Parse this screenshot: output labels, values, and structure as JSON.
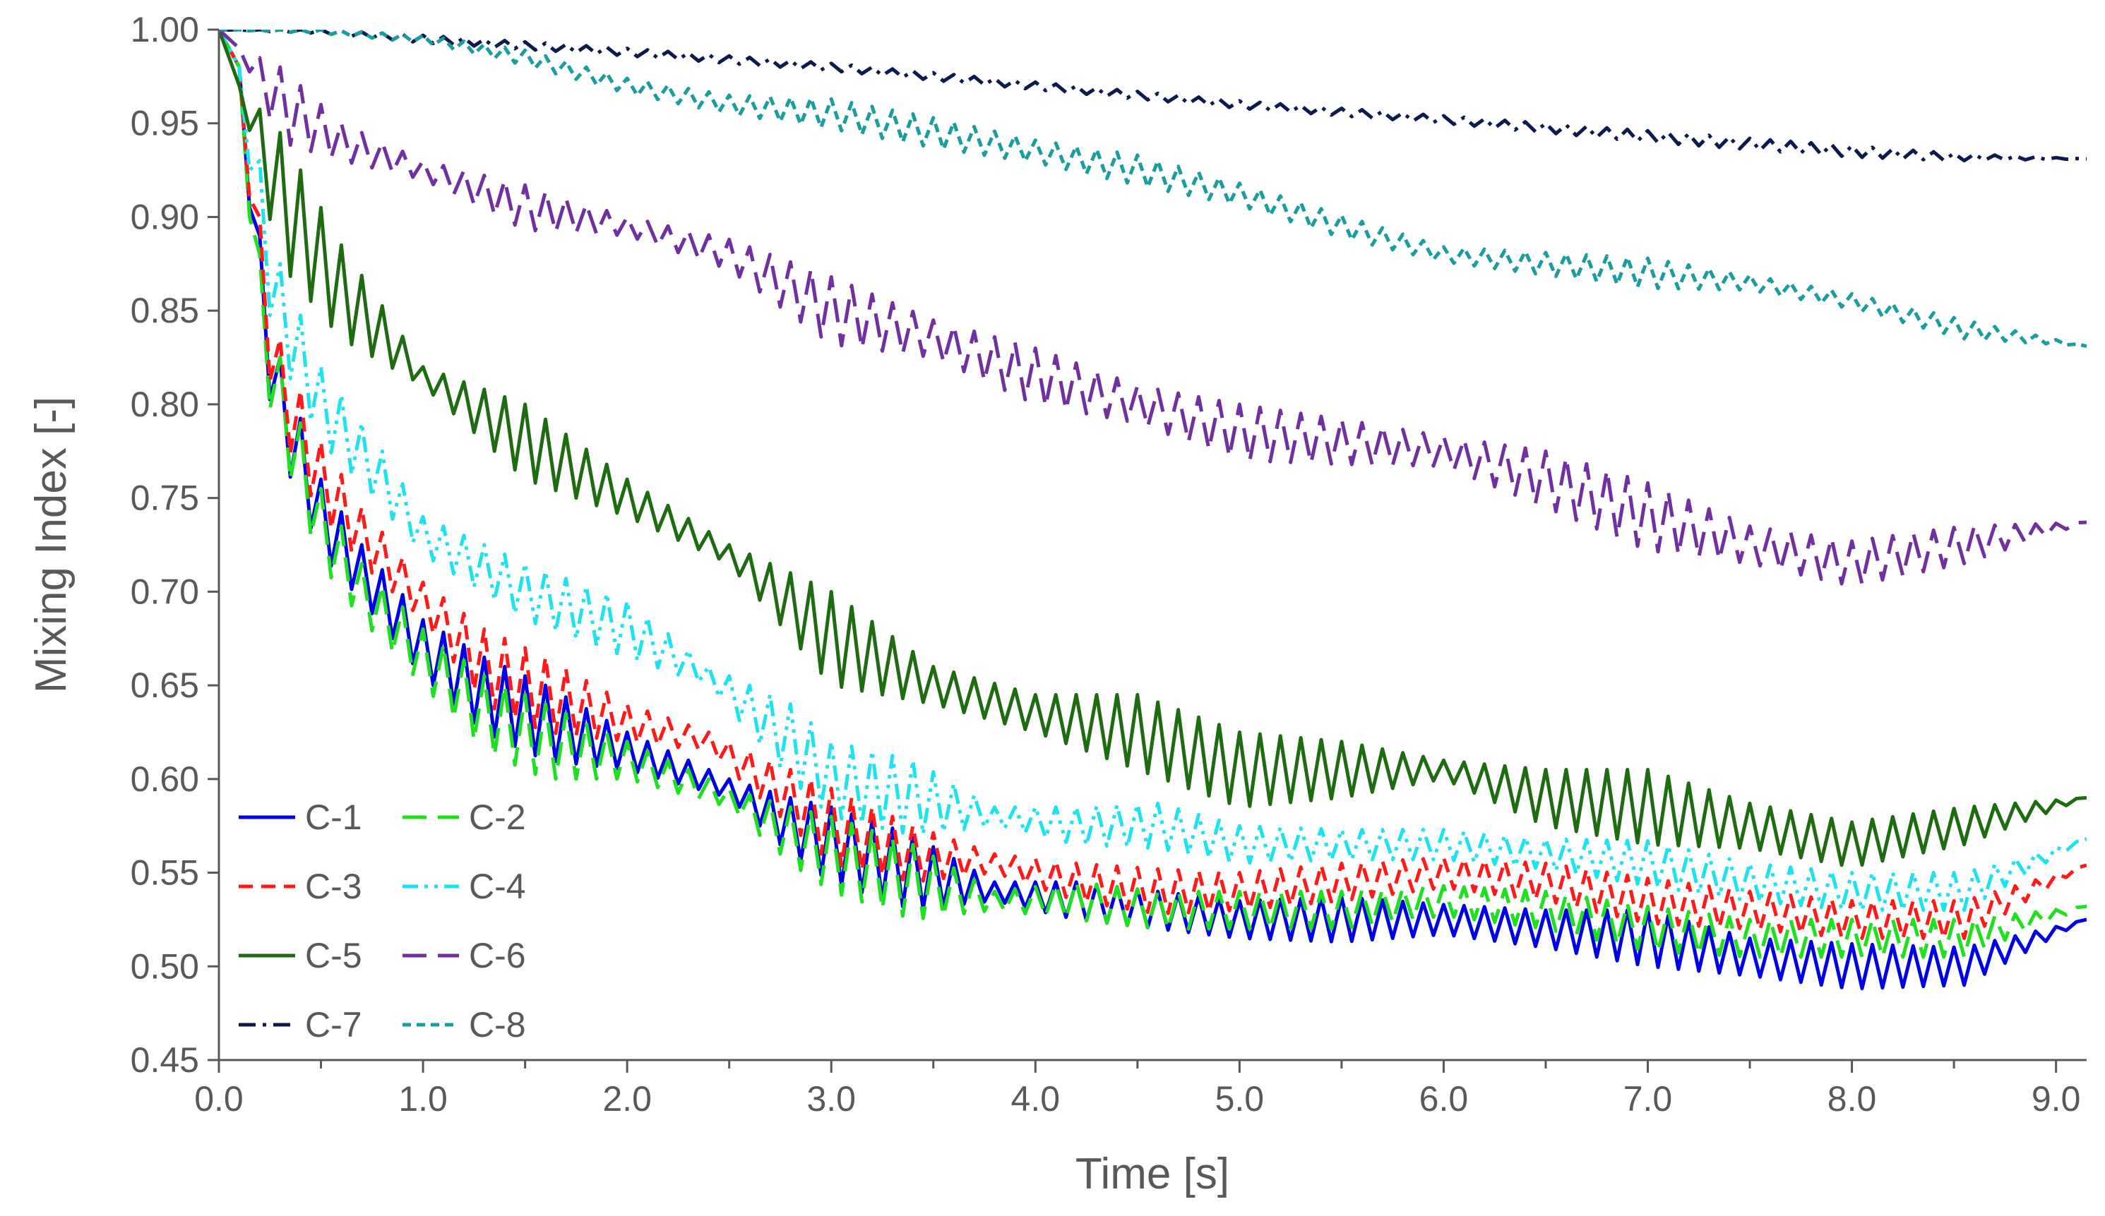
{
  "chart_data": {
    "type": "line",
    "title": "",
    "xlabel": "Time [s]",
    "ylabel": "Mixing Index [-]",
    "xlim": [
      0,
      9.15
    ],
    "ylim": [
      0.45,
      1.0
    ],
    "x_ticks": [
      0,
      1,
      2,
      3,
      4,
      5,
      6,
      7,
      8,
      9
    ],
    "x_tick_labels": [
      "0.0",
      "1.0",
      "2.0",
      "3.0",
      "4.0",
      "5.0",
      "6.0",
      "7.0",
      "8.0",
      "9.0"
    ],
    "y_ticks": [
      0.45,
      0.5,
      0.55,
      0.6,
      0.65,
      0.7,
      0.75,
      0.8,
      0.85,
      0.9,
      0.95,
      1.0
    ],
    "y_tick_labels": [
      "0.45",
      "0.50",
      "0.55",
      "0.60",
      "0.65",
      "0.70",
      "0.75",
      "0.80",
      "0.85",
      "0.90",
      "0.95",
      "1.00"
    ],
    "grid": false,
    "legend_position": "bottom-left",
    "oscillation_period_s": 0.1,
    "series": [
      {
        "name": "C-1",
        "color": "#0000e6",
        "dash": "solid",
        "x": [
          0,
          0.1,
          0.2,
          0.3,
          0.5,
          0.7,
          1.0,
          1.3,
          1.6,
          2.0,
          2.5,
          2.8,
          3.0,
          3.4,
          3.8,
          4.2,
          4.6,
          5.0,
          5.5,
          6.0,
          6.5,
          7.0,
          7.5,
          8.0,
          8.55,
          9.15
        ],
        "y": [
          1.0,
          0.98,
          0.86,
          0.8,
          0.74,
          0.71,
          0.67,
          0.645,
          0.63,
          0.615,
          0.595,
          0.575,
          0.565,
          0.55,
          0.54,
          0.535,
          0.53,
          0.525,
          0.525,
          0.525,
          0.52,
          0.515,
          0.505,
          0.5,
          0.5,
          0.525
        ],
        "amp": [
          0,
          0,
          0.03,
          0.025,
          0.02,
          0.015,
          0.015,
          0.02,
          0.02,
          0.01,
          0.005,
          0.015,
          0.02,
          0.02,
          0.005,
          0.01,
          0.01,
          0.01,
          0.012,
          0.008,
          0.01,
          0.015,
          0.01,
          0.012,
          0.01,
          0
        ]
      },
      {
        "name": "C-2",
        "color": "#1fe01f",
        "dash": "long-dash",
        "x": [
          0,
          0.1,
          0.2,
          0.3,
          0.5,
          0.7,
          1.0,
          1.3,
          1.6,
          2.0,
          2.5,
          2.8,
          3.0,
          3.4,
          3.8,
          4.2,
          4.6,
          5.0,
          5.5,
          6.0,
          6.5,
          7.0,
          7.5,
          8.0,
          8.55,
          9.15
        ],
        "y": [
          1.0,
          0.98,
          0.85,
          0.8,
          0.735,
          0.7,
          0.665,
          0.635,
          0.62,
          0.61,
          0.59,
          0.57,
          0.56,
          0.545,
          0.535,
          0.535,
          0.53,
          0.53,
          0.53,
          0.535,
          0.53,
          0.52,
          0.515,
          0.515,
          0.515,
          0.532
        ],
        "amp": [
          0,
          0,
          0.03,
          0.025,
          0.02,
          0.015,
          0.015,
          0.02,
          0.02,
          0.01,
          0.005,
          0.015,
          0.02,
          0.02,
          0.005,
          0.01,
          0.01,
          0.01,
          0.01,
          0.008,
          0.01,
          0.012,
          0.01,
          0.01,
          0.01,
          0
        ]
      },
      {
        "name": "C-3",
        "color": "#ff1a1a",
        "dash": "dash",
        "x": [
          0,
          0.1,
          0.2,
          0.3,
          0.5,
          0.7,
          1.0,
          1.3,
          1.6,
          2.0,
          2.4,
          2.8,
          3.0,
          3.4,
          3.8,
          4.2,
          4.6,
          5.0,
          5.5,
          6.0,
          6.5,
          7.0,
          7.5,
          8.0,
          8.55,
          9.15
        ],
        "y": [
          1.0,
          0.98,
          0.87,
          0.81,
          0.76,
          0.73,
          0.695,
          0.66,
          0.645,
          0.63,
          0.62,
          0.59,
          0.575,
          0.56,
          0.555,
          0.545,
          0.54,
          0.54,
          0.545,
          0.55,
          0.545,
          0.535,
          0.53,
          0.525,
          0.525,
          0.554
        ],
        "amp": [
          0,
          0,
          0.03,
          0.025,
          0.02,
          0.015,
          0.01,
          0.02,
          0.02,
          0.01,
          0.005,
          0.015,
          0.02,
          0.015,
          0.005,
          0.01,
          0.012,
          0.01,
          0.01,
          0.008,
          0.01,
          0.012,
          0.01,
          0.01,
          0.01,
          0
        ]
      },
      {
        "name": "C-4",
        "color": "#1ee3ef",
        "dash": "dash-dot-dot",
        "x": [
          0,
          0.1,
          0.2,
          0.3,
          0.5,
          0.8,
          1.0,
          1.5,
          2.0,
          2.4,
          2.8,
          3.0,
          3.4,
          3.8,
          4.2,
          4.6,
          5.0,
          5.5,
          6.0,
          6.5,
          7.0,
          7.5,
          8.0,
          8.55,
          9.15
        ],
        "y": [
          1.0,
          0.98,
          0.9,
          0.85,
          0.8,
          0.76,
          0.73,
          0.7,
          0.68,
          0.655,
          0.62,
          0.6,
          0.59,
          0.58,
          0.575,
          0.575,
          0.565,
          0.565,
          0.565,
          0.56,
          0.555,
          0.545,
          0.54,
          0.54,
          0.568
        ],
        "amp": [
          0,
          0,
          0.03,
          0.025,
          0.02,
          0.015,
          0.01,
          0.015,
          0.015,
          0.005,
          0.02,
          0.02,
          0.02,
          0.005,
          0.01,
          0.012,
          0.01,
          0.008,
          0.008,
          0.008,
          0.012,
          0.01,
          0.01,
          0.01,
          0
        ]
      },
      {
        "name": "C-5",
        "color": "#1e6b12",
        "dash": "solid",
        "x": [
          0,
          0.1,
          0.3,
          0.6,
          1.0,
          1.5,
          2.0,
          2.5,
          3.0,
          3.5,
          4.0,
          4.5,
          5.0,
          5.5,
          6.0,
          6.5,
          7.0,
          7.5,
          8.0,
          8.55,
          9.15
        ],
        "y": [
          1.0,
          0.97,
          0.91,
          0.86,
          0.815,
          0.78,
          0.75,
          0.72,
          0.675,
          0.65,
          0.635,
          0.625,
          0.605,
          0.605,
          0.605,
          0.59,
          0.585,
          0.575,
          0.565,
          0.575,
          0.59
        ],
        "amp": [
          0,
          0,
          0.035,
          0.025,
          0.005,
          0.02,
          0.01,
          0.005,
          0.025,
          0.01,
          0.01,
          0.02,
          0.02,
          0.015,
          0.005,
          0.015,
          0.02,
          0.012,
          0.012,
          0.01,
          0
        ]
      },
      {
        "name": "C-6",
        "color": "#7030a0",
        "dash": "long-dash",
        "x": [
          0,
          0.1,
          0.3,
          0.6,
          1.0,
          1.5,
          2.0,
          2.5,
          3.0,
          3.5,
          4.0,
          4.5,
          5.0,
          5.5,
          6.0,
          6.5,
          7.0,
          7.5,
          8.0,
          8.55,
          9.15
        ],
        "y": [
          1.0,
          0.99,
          0.96,
          0.94,
          0.925,
          0.905,
          0.895,
          0.88,
          0.85,
          0.835,
          0.815,
          0.8,
          0.785,
          0.78,
          0.775,
          0.76,
          0.74,
          0.725,
          0.715,
          0.725,
          0.737
        ],
        "amp": [
          0,
          0,
          0.02,
          0.01,
          0.005,
          0.012,
          0.005,
          0.008,
          0.018,
          0.01,
          0.015,
          0.01,
          0.015,
          0.012,
          0.008,
          0.015,
          0.018,
          0.01,
          0.012,
          0.01,
          0
        ]
      },
      {
        "name": "C-7",
        "color": "#0d1a4d",
        "dash": "dash-dot",
        "x": [
          0,
          0.5,
          1.0,
          2.0,
          3.0,
          4.0,
          5.0,
          6.0,
          7.0,
          8.0,
          8.5,
          9.15
        ],
        "y": [
          1.0,
          0.999,
          0.995,
          0.988,
          0.98,
          0.97,
          0.96,
          0.952,
          0.943,
          0.935,
          0.932,
          0.931
        ],
        "amp": [
          0,
          0.001,
          0.002,
          0.002,
          0.002,
          0.002,
          0.002,
          0.002,
          0.003,
          0.003,
          0.002,
          0
        ]
      },
      {
        "name": "C-8",
        "color": "#1a9d9d",
        "dash": "short-dash",
        "x": [
          0,
          0.5,
          1.0,
          1.5,
          2.0,
          2.5,
          3.0,
          3.5,
          4.0,
          4.5,
          5.0,
          5.5,
          6.0,
          6.5,
          7.0,
          7.5,
          8.0,
          8.55,
          9.15
        ],
        "y": [
          1.0,
          0.999,
          0.995,
          0.985,
          0.97,
          0.96,
          0.955,
          0.945,
          0.935,
          0.925,
          0.912,
          0.895,
          0.88,
          0.875,
          0.87,
          0.865,
          0.855,
          0.84,
          0.831
        ],
        "amp": [
          0,
          0.001,
          0.002,
          0.004,
          0.004,
          0.005,
          0.008,
          0.008,
          0.006,
          0.008,
          0.006,
          0.006,
          0.004,
          0.006,
          0.008,
          0.004,
          0.004,
          0.005,
          0
        ]
      }
    ]
  }
}
